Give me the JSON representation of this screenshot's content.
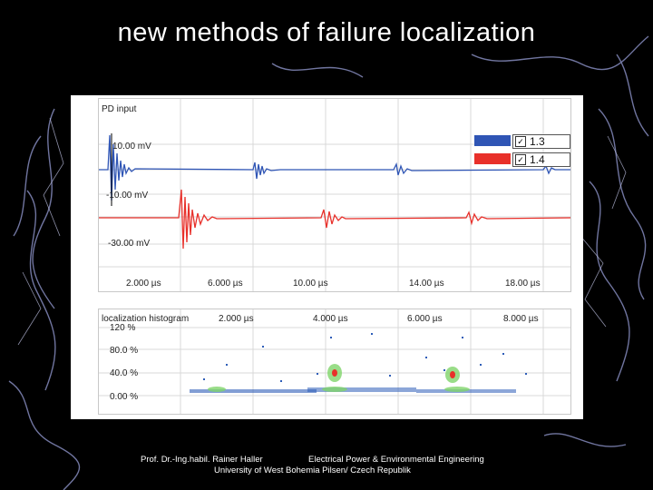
{
  "slide": {
    "title": "new methods of failure localization"
  },
  "scope": {
    "panel_title": "PD input",
    "y_ticks": [
      "10.00 mV",
      "-10.00 mV",
      "-30.00 mV"
    ],
    "x_ticks": [
      "2.000 µs",
      "6.000 µs",
      "10.00 µs",
      "14.00 µs",
      "18.00 µs"
    ],
    "legend": [
      {
        "label": "1.3",
        "color": "#2f55b5",
        "checked": true
      },
      {
        "label": "1.4",
        "color": "#e8302a",
        "checked": true
      }
    ]
  },
  "histogram": {
    "panel_title": "localization histogram",
    "x_ticks": [
      "2.000 µs",
      "4.000 µs",
      "6.000 µs",
      "8.000 µs"
    ],
    "y_ticks": [
      "120 %",
      "80.0 %",
      "40.0 %",
      "0.00 %"
    ]
  },
  "footer": {
    "author": "Prof. Dr.-Ing.habil. Rainer Haller",
    "department": "Electrical Power & Environmental Engineering",
    "university": "University of West Bohemia Pilsen/ Czech Republik"
  },
  "colors": {
    "background": "#000000",
    "trace_1_3": "#2f55b5",
    "trace_1_4": "#e8302a",
    "text": "#ffffff"
  }
}
